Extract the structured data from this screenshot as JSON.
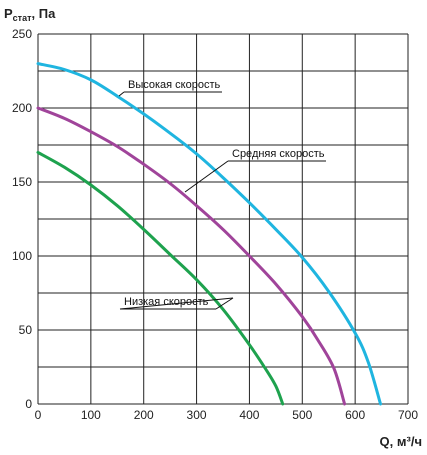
{
  "chart_data": {
    "type": "line",
    "ylabel": "P",
    "ylabel_sub": "стат",
    "ylabel_unit": ", Па",
    "xlabel": "Q, м³/ч",
    "xlim": [
      0,
      700
    ],
    "ylim": [
      0,
      250
    ],
    "xticks": [
      0,
      100,
      200,
      300,
      400,
      500,
      600,
      700
    ],
    "yticks": [
      0,
      50,
      100,
      150,
      200,
      250
    ],
    "grid": true,
    "series": [
      {
        "name": "Высокая скорость",
        "color": "#1fb5e0",
        "x": [
          0,
          50,
          100,
          150,
          200,
          250,
          300,
          350,
          400,
          450,
          500,
          550,
          600,
          625,
          648
        ],
        "y": [
          230,
          226,
          219,
          208,
          196,
          183,
          169,
          153,
          136,
          118,
          99,
          76,
          48,
          28,
          0
        ]
      },
      {
        "name": "Средняя скорость",
        "color": "#a0449a",
        "x": [
          0,
          50,
          100,
          150,
          200,
          250,
          300,
          350,
          400,
          450,
          500,
          530,
          560,
          580
        ],
        "y": [
          200,
          193,
          184,
          174,
          162,
          149,
          134,
          118,
          100,
          81,
          59,
          43,
          24,
          0
        ]
      },
      {
        "name": "Низкая скорость",
        "color": "#1ea24e",
        "x": [
          0,
          50,
          100,
          150,
          200,
          250,
          300,
          350,
          400,
          430,
          450,
          463
        ],
        "y": [
          170,
          160,
          148,
          134,
          118,
          101,
          84,
          64,
          40,
          24,
          12,
          0
        ]
      }
    ]
  }
}
